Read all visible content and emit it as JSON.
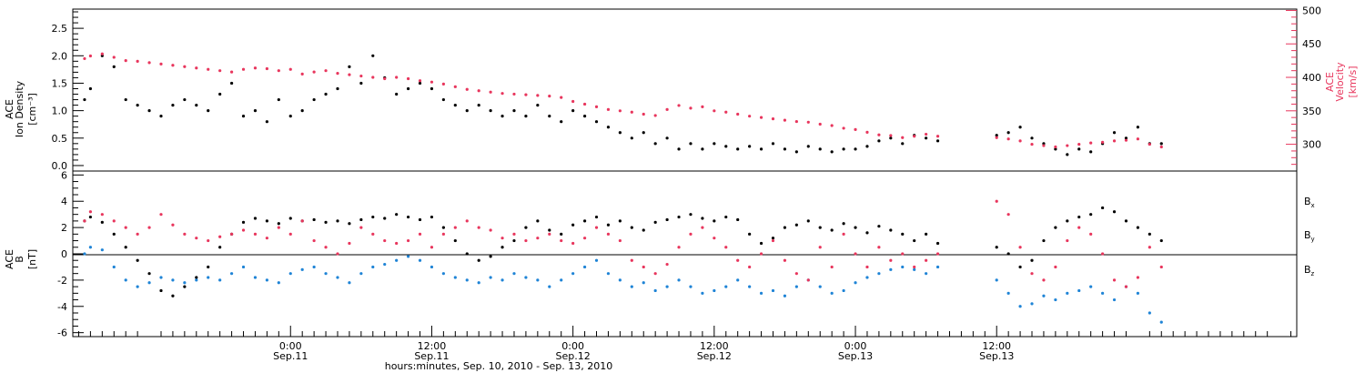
{
  "chart_data": [
    {
      "panel": "top",
      "type": "scatter",
      "left_axis_label": [
        "ACE",
        "Ion Density",
        "[cm⁻³]"
      ],
      "right_axis_label": [
        "ACE",
        "Velocity",
        "[km/s]"
      ],
      "left_ylim": [
        -0.1,
        2.85
      ],
      "right_ylim": [
        260,
        502
      ],
      "left_ticks": [
        "0.0",
        "0.5",
        "1.0",
        "1.5",
        "2.0",
        "2.5"
      ],
      "right_ticks": [
        "300",
        "350",
        "400",
        "450",
        "500"
      ],
      "colors": {
        "density": "#000000",
        "velocity": "#e8365d"
      },
      "series": [
        {
          "name": "density",
          "axis": "left",
          "t_hours": [
            -17.5,
            -17,
            -16,
            -15,
            -14,
            -13,
            -12,
            -11,
            -10,
            -9,
            -8,
            -7,
            -6,
            -5,
            -4,
            -3,
            -2,
            -1,
            0,
            1,
            2,
            3,
            4,
            5,
            6,
            7,
            8,
            9,
            10,
            11,
            12,
            13,
            14,
            15,
            16,
            17,
            18,
            19,
            20,
            21,
            22,
            23,
            24,
            25,
            26,
            27,
            28,
            29,
            30,
            31,
            32,
            33,
            34,
            35,
            36,
            37,
            38,
            39,
            40,
            41,
            42,
            43,
            44,
            45,
            46,
            47,
            48,
            49,
            50,
            51,
            52,
            53,
            54,
            55,
            60,
            61,
            62,
            63,
            64,
            65,
            66,
            67,
            68,
            69,
            70,
            71,
            72,
            73,
            74
          ],
          "values": [
            1.2,
            1.4,
            2.0,
            1.8,
            1.2,
            1.1,
            1.0,
            0.9,
            1.1,
            1.2,
            1.1,
            1.0,
            1.3,
            1.5,
            0.9,
            1.0,
            0.8,
            1.2,
            0.9,
            1.0,
            1.2,
            1.3,
            1.4,
            1.8,
            1.5,
            2.0,
            1.6,
            1.3,
            1.4,
            1.5,
            1.4,
            1.2,
            1.1,
            1.0,
            1.1,
            1.0,
            0.9,
            1.0,
            0.9,
            1.1,
            0.9,
            0.8,
            1.0,
            0.9,
            0.8,
            0.7,
            0.6,
            0.5,
            0.6,
            0.4,
            0.5,
            0.3,
            0.4,
            0.3,
            0.4,
            0.35,
            0.3,
            0.35,
            0.3,
            0.4,
            0.3,
            0.25,
            0.35,
            0.3,
            0.25,
            0.3,
            0.3,
            0.35,
            0.45,
            0.5,
            0.4,
            0.55,
            0.5,
            0.45,
            0.55,
            0.6,
            0.7,
            0.5,
            0.4,
            0.3,
            0.2,
            0.3,
            0.25,
            0.4,
            0.6,
            0.5,
            0.7,
            0.4,
            0.4
          ]
        },
        {
          "name": "velocity",
          "axis": "right",
          "t_hours": [
            -17.5,
            -17,
            -16,
            -15,
            -14,
            -13,
            -12,
            -11,
            -10,
            -9,
            -8,
            -7,
            -6,
            -5,
            -4,
            -3,
            -2,
            -1,
            0,
            1,
            2,
            3,
            4,
            5,
            6,
            7,
            8,
            9,
            10,
            11,
            12,
            13,
            14,
            15,
            16,
            17,
            18,
            19,
            20,
            21,
            22,
            23,
            24,
            25,
            26,
            27,
            28,
            29,
            30,
            31,
            32,
            33,
            34,
            35,
            36,
            37,
            38,
            39,
            40,
            41,
            42,
            43,
            44,
            45,
            46,
            47,
            48,
            49,
            50,
            51,
            52,
            53,
            54,
            55,
            60,
            61,
            62,
            63,
            64,
            65,
            66,
            67,
            68,
            69,
            70,
            71,
            72,
            73,
            74
          ],
          "values": [
            428,
            432,
            435,
            430,
            425,
            424,
            422,
            420,
            418,
            416,
            414,
            412,
            410,
            408,
            412,
            414,
            413,
            410,
            412,
            405,
            408,
            410,
            406,
            404,
            402,
            400,
            398,
            400,
            398,
            395,
            393,
            390,
            386,
            382,
            380,
            378,
            376,
            375,
            374,
            373,
            372,
            370,
            364,
            360,
            356,
            352,
            350,
            348,
            345,
            343,
            352,
            358,
            354,
            356,
            350,
            348,
            345,
            342,
            340,
            338,
            336,
            334,
            333,
            330,
            328,
            324,
            322,
            318,
            314,
            313,
            310,
            312,
            315,
            312,
            310,
            308,
            305,
            300,
            298,
            296,
            298,
            300,
            302,
            303,
            305,
            306,
            308,
            300,
            296
          ]
        }
      ]
    },
    {
      "panel": "bottom",
      "type": "scatter",
      "left_axis_label": [
        "ACE",
        "B",
        "[nT]"
      ],
      "ylim": [
        -6.3,
        6.3
      ],
      "ticks": [
        "-6",
        "-4",
        "-2",
        "0",
        "2",
        "4",
        "6"
      ],
      "colors": {
        "Bx": "#000000",
        "By": "#1f84d6",
        "Bz": "#e8365d"
      },
      "legend_placement": "right",
      "series": [
        {
          "name": "Bx",
          "label_base": "B",
          "label_sub": "x",
          "t_hours": [
            -17.5,
            -17,
            -16,
            -15,
            -14,
            -13,
            -12,
            -11,
            -10,
            -9,
            -8,
            -7,
            -6,
            -5,
            -4,
            -3,
            -2,
            -1,
            0,
            1,
            2,
            3,
            4,
            5,
            6,
            7,
            8,
            9,
            10,
            11,
            12,
            13,
            14,
            15,
            16,
            17,
            18,
            19,
            20,
            21,
            22,
            23,
            24,
            25,
            26,
            27,
            28,
            29,
            30,
            31,
            32,
            33,
            34,
            35,
            36,
            37,
            38,
            39,
            40,
            41,
            42,
            43,
            44,
            45,
            46,
            47,
            48,
            49,
            50,
            51,
            52,
            53,
            54,
            55,
            60,
            61,
            62,
            63,
            64,
            65,
            66,
            67,
            68,
            69,
            70,
            71,
            72,
            73,
            74
          ],
          "values": [
            2.5,
            2.8,
            2.4,
            1.5,
            0.5,
            -0.5,
            -1.5,
            -2.8,
            -3.2,
            -2.5,
            -1.8,
            -1.0,
            0.5,
            1.5,
            2.4,
            2.7,
            2.5,
            2.3,
            2.7,
            2.5,
            2.6,
            2.4,
            2.5,
            2.3,
            2.6,
            2.8,
            2.7,
            3.0,
            2.8,
            2.6,
            2.8,
            2.0,
            1.0,
            0.0,
            -0.5,
            -0.2,
            0.5,
            1.0,
            2.0,
            2.5,
            1.8,
            1.5,
            2.2,
            2.5,
            2.8,
            2.2,
            2.5,
            2.0,
            1.8,
            2.4,
            2.6,
            2.8,
            3.0,
            2.7,
            2.5,
            2.8,
            2.6,
            1.5,
            0.8,
            1.2,
            2.0,
            2.2,
            2.5,
            2.0,
            1.8,
            2.3,
            2.0,
            1.6,
            2.1,
            1.8,
            1.5,
            1.0,
            1.5,
            0.8,
            0.5,
            0.0,
            -1.0,
            -0.5,
            1.0,
            2.0,
            2.5,
            2.8,
            3.0,
            3.5,
            3.2,
            2.5,
            2.0,
            1.5,
            1.0
          ]
        },
        {
          "name": "By",
          "label_base": "B",
          "label_sub": "y",
          "t_hours": [
            -17.5,
            -17,
            -16,
            -15,
            -14,
            -13,
            -12,
            -11,
            -10,
            -9,
            -8,
            -7,
            -6,
            -5,
            -4,
            -3,
            -2,
            -1,
            0,
            1,
            2,
            3,
            4,
            5,
            6,
            7,
            8,
            9,
            10,
            11,
            12,
            13,
            14,
            15,
            16,
            17,
            18,
            19,
            20,
            21,
            22,
            23,
            24,
            25,
            26,
            27,
            28,
            29,
            30,
            31,
            32,
            33,
            34,
            35,
            36,
            37,
            38,
            39,
            40,
            41,
            42,
            43,
            44,
            45,
            46,
            47,
            48,
            49,
            50,
            51,
            52,
            53,
            54,
            55,
            60,
            61,
            62,
            63,
            64,
            65,
            66,
            67,
            68,
            69,
            70,
            71,
            72,
            73,
            74
          ],
          "values": [
            0.0,
            0.5,
            0.3,
            -1.0,
            -2.0,
            -2.5,
            -2.2,
            -1.8,
            -2.0,
            -2.2,
            -2.0,
            -1.8,
            -2.0,
            -1.5,
            -1.0,
            -1.8,
            -2.0,
            -2.2,
            -1.5,
            -1.2,
            -1.0,
            -1.5,
            -1.8,
            -2.2,
            -1.5,
            -1.0,
            -0.8,
            -0.5,
            -0.2,
            -0.5,
            -1.0,
            -1.5,
            -1.8,
            -2.0,
            -2.2,
            -1.8,
            -2.0,
            -1.5,
            -1.8,
            -2.0,
            -2.5,
            -2.0,
            -1.5,
            -1.0,
            -0.5,
            -1.5,
            -2.0,
            -2.5,
            -2.2,
            -2.8,
            -2.5,
            -2.0,
            -2.5,
            -3.0,
            -2.8,
            -2.5,
            -2.0,
            -2.5,
            -3.0,
            -2.8,
            -3.2,
            -2.5,
            -2.0,
            -2.5,
            -3.0,
            -2.8,
            -2.2,
            -1.8,
            -1.5,
            -1.2,
            -1.0,
            -1.2,
            -1.5,
            -1.0,
            -2.0,
            -3.0,
            -4.0,
            -3.8,
            -3.2,
            -3.5,
            -3.0,
            -2.8,
            -2.5,
            -3.0,
            -3.5,
            -2.5,
            -3.0,
            -4.5,
            -5.2
          ]
        },
        {
          "name": "Bz",
          "label_base": "B",
          "label_sub": "z",
          "t_hours": [
            -17.5,
            -17,
            -16,
            -15,
            -14,
            -13,
            -12,
            -11,
            -10,
            -9,
            -8,
            -7,
            -6,
            -5,
            -4,
            -3,
            -2,
            -1,
            0,
            1,
            2,
            3,
            4,
            5,
            6,
            7,
            8,
            9,
            10,
            11,
            12,
            13,
            14,
            15,
            16,
            17,
            18,
            19,
            20,
            21,
            22,
            23,
            24,
            25,
            26,
            27,
            28,
            29,
            30,
            31,
            32,
            33,
            34,
            35,
            36,
            37,
            38,
            39,
            40,
            41,
            42,
            43,
            44,
            45,
            46,
            47,
            48,
            49,
            50,
            51,
            52,
            53,
            54,
            55,
            60,
            61,
            62,
            63,
            64,
            65,
            66,
            67,
            68,
            69,
            70,
            71,
            72,
            73,
            74
          ],
          "values": [
            2.5,
            3.2,
            3.0,
            2.5,
            2.0,
            1.5,
            2.0,
            3.0,
            2.2,
            1.5,
            1.2,
            1.0,
            1.3,
            1.5,
            1.8,
            1.5,
            1.2,
            2.0,
            1.5,
            2.5,
            1.0,
            0.5,
            0.0,
            0.8,
            2.0,
            1.5,
            1.0,
            0.8,
            1.0,
            1.5,
            0.5,
            1.5,
            2.0,
            2.5,
            2.0,
            1.8,
            1.2,
            1.5,
            1.0,
            1.2,
            1.5,
            1.0,
            0.8,
            1.2,
            2.0,
            1.5,
            1.0,
            -0.5,
            -1.0,
            -1.5,
            -0.8,
            0.5,
            1.5,
            2.0,
            1.2,
            0.5,
            -0.5,
            -1.0,
            0.0,
            1.0,
            -0.5,
            -1.5,
            -2.0,
            0.5,
            -1.0,
            1.5,
            0.0,
            -1.0,
            0.5,
            -0.5,
            0.0,
            -1.0,
            -0.5,
            0.0,
            4.0,
            3.0,
            0.5,
            -1.5,
            -2.0,
            -1.0,
            1.0,
            2.0,
            1.5,
            0.0,
            -2.0,
            -2.5,
            -1.8,
            0.5,
            -1.0
          ]
        }
      ]
    }
  ],
  "x_axis": {
    "xlim_hours": [
      -18.5,
      85.5
    ],
    "ticks": [
      {
        "t": 0,
        "time": "0:00",
        "date": "Sep.11"
      },
      {
        "t": 12,
        "time": "12:00",
        "date": "Sep.11"
      },
      {
        "t": 24,
        "time": "0:00",
        "date": "Sep.12"
      },
      {
        "t": 36,
        "time": "12:00",
        "date": "Sep.12"
      },
      {
        "t": 48,
        "time": "0:00",
        "date": "Sep.13"
      },
      {
        "t": 60,
        "time": "12:00",
        "date": "Sep.13"
      }
    ],
    "xlabel": "hours:minutes, Sep. 10, 2010 - Sep. 13, 2010"
  }
}
